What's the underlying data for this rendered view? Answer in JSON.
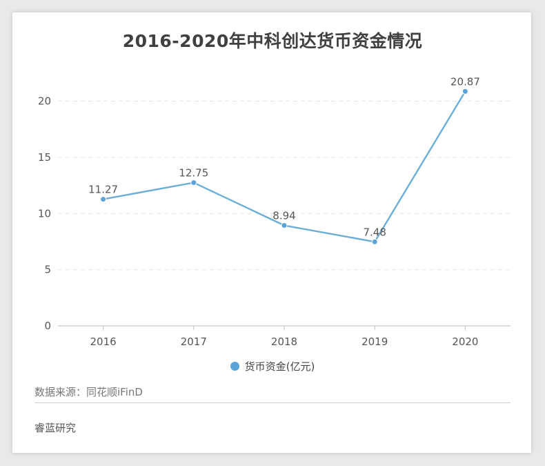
{
  "chart_data": {
    "type": "line",
    "title": "2016-2020年中科创达货币资金情况",
    "categories": [
      "2016",
      "2017",
      "2018",
      "2019",
      "2020"
    ],
    "series": [
      {
        "name": "货币资金(亿元)",
        "values": [
          11.27,
          12.75,
          8.94,
          7.48,
          20.87
        ],
        "color": "#6aaed6",
        "marker_color": "#5ba3d9"
      }
    ],
    "y_ticks": [
      "0",
      "5",
      "10",
      "15",
      "20"
    ],
    "ylim": [
      0,
      22
    ],
    "grid": "horizontal-dashed",
    "legend_position": "bottom"
  },
  "footer": {
    "source": "数据来源：同花顺iFinD",
    "brand": "睿蓝研究"
  }
}
